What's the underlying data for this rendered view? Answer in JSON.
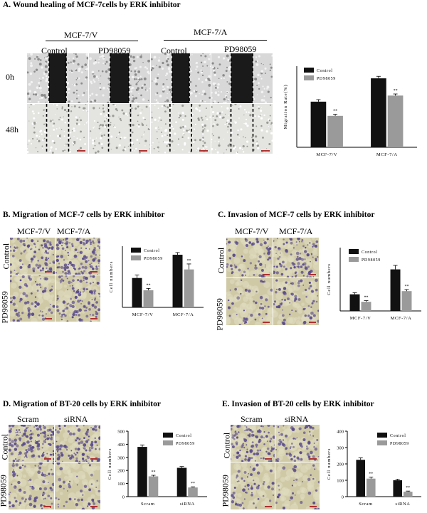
{
  "panelA": {
    "title": "A. Wound healing of MCF-7cells by ERK inhibitor",
    "groups": [
      "MCF-7/V",
      "MCF-7/A"
    ],
    "cols": [
      "Control",
      "PD98059",
      "Control",
      "PD98059"
    ],
    "rows": [
      "0h",
      "48h"
    ]
  },
  "panelB": {
    "title": "B. Migration of MCF-7 cells by ERK inhibitor",
    "cols": [
      "MCF-7/V",
      "MCF-7/A"
    ],
    "rows": [
      "Control",
      "PD98059"
    ]
  },
  "panelC": {
    "title": "C. Invasion of MCF-7 cells by ERK inhibitor",
    "cols": [
      "MCF-7/V",
      "MCF-7/A"
    ],
    "rows": [
      "Control",
      "PD98059"
    ]
  },
  "panelD": {
    "title": "D. Migration of BT-20 cells by ERK inhibitor",
    "cols": [
      "Scram",
      "siRNA"
    ],
    "rows": [
      "Control",
      "PD98059"
    ]
  },
  "panelE": {
    "title": "E. Invasion of BT-20 cells by ERK inhibitor",
    "cols": [
      "Scram",
      "siRNA"
    ],
    "rows": [
      "Control",
      "PD98059"
    ]
  },
  "colors": {
    "control": "#111111",
    "pd98059": "#9a9a9a",
    "wound": "#1a1a1a",
    "stain_bg": "#cfc9a6",
    "stain_dot": "#5a4c8c"
  },
  "chart_data": [
    {
      "id": "A",
      "type": "bar",
      "categories": [
        "MCF-7/V",
        "MCF-7/A"
      ],
      "ylabel": "Migration Rate(%)",
      "ylim": [
        0,
        40
      ],
      "series": [
        {
          "name": "Control",
          "values": [
            22.5,
            34
          ],
          "errors": [
            1,
            1
          ]
        },
        {
          "name": "PD98059",
          "values": [
            15.5,
            25.5
          ],
          "errors": [
            0.8,
            0.8
          ]
        }
      ],
      "annotations": [
        "**",
        "**"
      ]
    },
    {
      "id": "B",
      "type": "bar",
      "categories": [
        "MCF-7/V",
        "MCF-7/A"
      ],
      "ylabel": "Cell numbers",
      "ylim": [
        0,
        500
      ],
      "series": [
        {
          "name": "Control",
          "values": [
            240,
            430
          ],
          "errors": [
            25,
            18
          ]
        },
        {
          "name": "PD98059",
          "values": [
            140,
            310
          ],
          "errors": [
            15,
            45
          ]
        }
      ],
      "annotations": [
        "**",
        "**"
      ]
    },
    {
      "id": "C",
      "type": "bar",
      "categories": [
        "MCF-7/V",
        "MCF-7/A"
      ],
      "ylabel": "Cell numbers",
      "ylim": [
        0,
        160
      ],
      "series": [
        {
          "name": "Control",
          "values": [
            42,
            105
          ],
          "errors": [
            4,
            10
          ]
        },
        {
          "name": "PD98059",
          "values": [
            23,
            50
          ],
          "errors": [
            3,
            4
          ]
        }
      ],
      "annotations": [
        "**",
        "**"
      ]
    },
    {
      "id": "D",
      "type": "bar",
      "categories": [
        "Scram",
        "siRNA"
      ],
      "ylabel": "Cell numbers",
      "ylim": [
        0,
        500
      ],
      "yticks": [
        0,
        100,
        200,
        300,
        400,
        500
      ],
      "series": [
        {
          "name": "Control",
          "values": [
            380,
            220
          ],
          "errors": [
            15,
            10
          ]
        },
        {
          "name": "PD98059",
          "values": [
            155,
            70
          ],
          "errors": [
            8,
            5
          ]
        }
      ],
      "annotations": [
        "**",
        "**"
      ]
    },
    {
      "id": "E",
      "type": "bar",
      "categories": [
        "Scram",
        "siRNA"
      ],
      "ylabel": "Cell numbers",
      "ylim": [
        0,
        400
      ],
      "yticks": [
        0,
        100,
        200,
        300,
        400
      ],
      "series": [
        {
          "name": "Control",
          "values": [
            225,
            100
          ],
          "errors": [
            12,
            7
          ]
        },
        {
          "name": "PD98059",
          "values": [
            110,
            30
          ],
          "errors": [
            9,
            4
          ]
        }
      ],
      "annotations": [
        "**",
        "**"
      ]
    }
  ]
}
